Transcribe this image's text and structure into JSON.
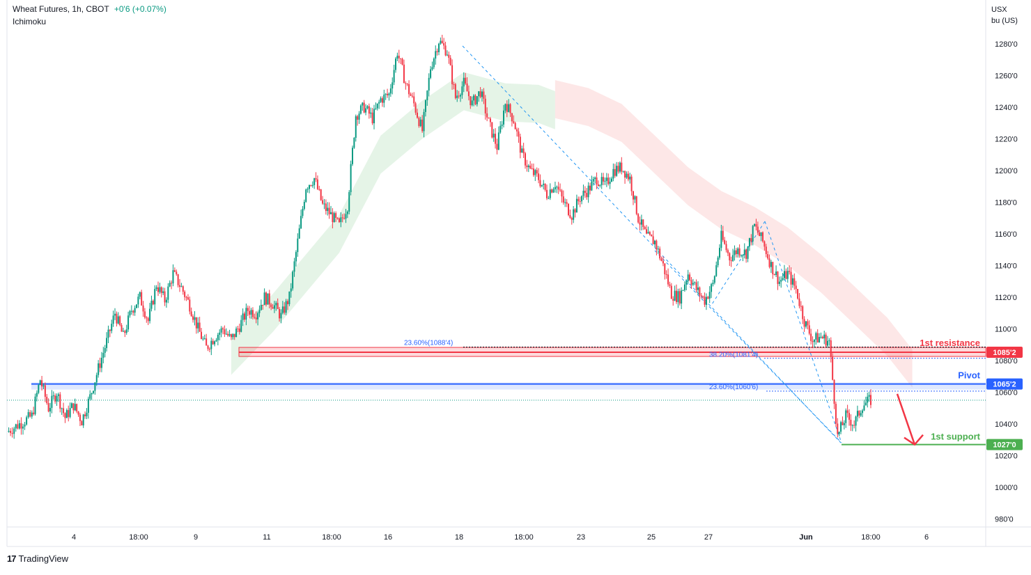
{
  "header": {
    "symbol": "Wheat Futures, 1h, CBOT",
    "change": "+0'6 (+0.07%)",
    "indicator": "Ichimoku",
    "unit_line1": "USX",
    "unit_line2": "bu (US)"
  },
  "brand": {
    "name": "TradingView",
    "logo": "17"
  },
  "colors": {
    "up": "#089981",
    "down": "#f23645",
    "resistance": "#f23645",
    "pivot": "#2962ff",
    "support": "#4caf50",
    "fib": "#2962ff",
    "cloud_bull": "#e0f2e3",
    "cloud_bear": "#fde3e3"
  },
  "annotations": {
    "resistance_label": "1st resistance",
    "pivot_label": "Pivot",
    "support_label": "1st support",
    "fib_resistance_1": "23.60%(1088'4)",
    "fib_resistance_2": "38.20%(1081'4)",
    "fib_pivot": "23.60%(1060'6)"
  },
  "chart_data": {
    "type": "candlestick",
    "title": "Wheat Futures, 1h, CBOT",
    "ylim": [
      970,
      1295
    ],
    "y_ticks": [
      "980'0",
      "1000'0",
      "1020'0",
      "1040'0",
      "1060'0",
      "1080'0",
      "1100'0",
      "1120'0",
      "1140'0",
      "1160'0",
      "1180'0",
      "1200'0",
      "1220'0",
      "1240'0",
      "1260'0",
      "1280'0"
    ],
    "x_ticks": [
      "4",
      "18:00",
      "9",
      "11",
      "18:00",
      "16",
      "18",
      "18:00",
      "23",
      "25",
      "27",
      "Jun",
      "18:00",
      "6"
    ],
    "levels": {
      "resistance": {
        "value": 1085.25,
        "label": "1085'2"
      },
      "pivot": {
        "value": 1065.25,
        "label": "1065'2"
      },
      "support": {
        "value": 1027.0,
        "label": "1027'0"
      },
      "current": 1055
    },
    "price_path": [
      [
        0,
        1035
      ],
      [
        3,
        1045
      ],
      [
        4,
        1068
      ],
      [
        5,
        1050
      ],
      [
        6,
        1060
      ],
      [
        7,
        1044
      ],
      [
        8,
        1052
      ],
      [
        9,
        1042
      ],
      [
        10,
        1057
      ],
      [
        11,
        1075
      ],
      [
        12,
        1092
      ],
      [
        13,
        1110
      ],
      [
        14,
        1095
      ],
      [
        15,
        1112
      ],
      [
        16,
        1120
      ],
      [
        17,
        1105
      ],
      [
        18,
        1128
      ],
      [
        19,
        1118
      ],
      [
        20,
        1135
      ],
      [
        21,
        1126
      ],
      [
        22,
        1115
      ],
      [
        23,
        1100
      ],
      [
        24,
        1088
      ],
      [
        25,
        1095
      ],
      [
        26,
        1100
      ],
      [
        27,
        1093
      ],
      [
        28,
        1102
      ],
      [
        29,
        1112
      ],
      [
        30,
        1110
      ],
      [
        31,
        1120
      ],
      [
        32,
        1116
      ],
      [
        33,
        1108
      ],
      [
        34,
        1120
      ],
      [
        35,
        1155
      ],
      [
        36,
        1190
      ],
      [
        37,
        1195
      ],
      [
        38,
        1178
      ],
      [
        39,
        1172
      ],
      [
        40,
        1165
      ],
      [
        41,
        1178
      ],
      [
        42,
        1235
      ],
      [
        43,
        1240
      ],
      [
        44,
        1233
      ],
      [
        45,
        1245
      ],
      [
        46,
        1248
      ],
      [
        47,
        1275
      ],
      [
        48,
        1255
      ],
      [
        49,
        1242
      ],
      [
        50,
        1225
      ],
      [
        51,
        1265
      ],
      [
        52,
        1282
      ],
      [
        53,
        1275
      ],
      [
        54,
        1246
      ],
      [
        55,
        1255
      ],
      [
        56,
        1242
      ],
      [
        57,
        1250
      ],
      [
        58,
        1230
      ],
      [
        59,
        1215
      ],
      [
        60,
        1243
      ],
      [
        61,
        1232
      ],
      [
        62,
        1210
      ],
      [
        63,
        1200
      ],
      [
        64,
        1195
      ],
      [
        65,
        1185
      ],
      [
        66,
        1192
      ],
      [
        67,
        1180
      ],
      [
        68,
        1172
      ],
      [
        69,
        1183
      ],
      [
        70,
        1188
      ],
      [
        71,
        1195
      ],
      [
        72,
        1190
      ],
      [
        73,
        1200
      ],
      [
        74,
        1202
      ],
      [
        75,
        1195
      ],
      [
        76,
        1170
      ],
      [
        77,
        1158
      ],
      [
        78,
        1155
      ],
      [
        79,
        1140
      ],
      [
        80,
        1122
      ],
      [
        81,
        1120
      ],
      [
        82,
        1135
      ],
      [
        83,
        1125
      ],
      [
        84,
        1118
      ],
      [
        85,
        1128
      ],
      [
        86,
        1158
      ],
      [
        87,
        1145
      ],
      [
        88,
        1150
      ],
      [
        89,
        1148
      ],
      [
        90,
        1165
      ],
      [
        91,
        1155
      ],
      [
        92,
        1140
      ],
      [
        93,
        1130
      ],
      [
        94,
        1135
      ],
      [
        95,
        1125
      ],
      [
        96,
        1105
      ],
      [
        97,
        1093
      ],
      [
        98,
        1095
      ],
      [
        99,
        1092
      ],
      [
        100,
        1032
      ],
      [
        101,
        1045
      ],
      [
        102,
        1040
      ],
      [
        103,
        1052
      ],
      [
        104,
        1055
      ]
    ],
    "ichimoku_cloud": {
      "bull": [
        [
          27,
          1083
        ],
        [
          32,
          1110
        ],
        [
          40,
          1160
        ],
        [
          45,
          1210
        ],
        [
          50,
          1232
        ],
        [
          55,
          1250
        ],
        [
          60,
          1243
        ],
        [
          64,
          1242
        ],
        [
          66,
          1238
        ]
      ],
      "bear": [
        [
          66,
          1245
        ],
        [
          70,
          1240
        ],
        [
          74,
          1230
        ],
        [
          78,
          1210
        ],
        [
          82,
          1190
        ],
        [
          86,
          1175
        ],
        [
          90,
          1165
        ],
        [
          94,
          1152
        ],
        [
          98,
          1135
        ],
        [
          102,
          1115
        ],
        [
          106,
          1095
        ],
        [
          109,
          1075
        ]
      ]
    }
  }
}
